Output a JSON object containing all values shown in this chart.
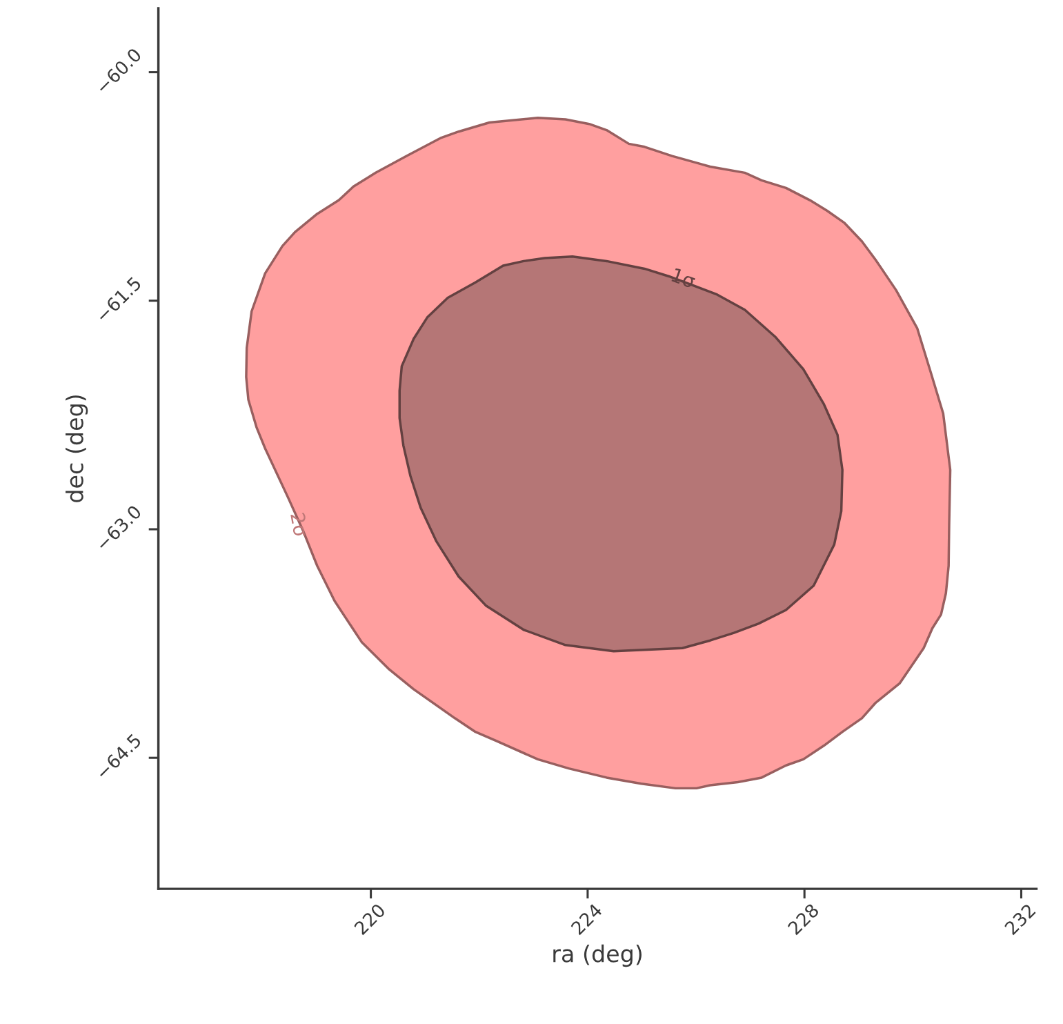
{
  "chart_data": {
    "type": "area",
    "xlabel": "ra (deg)",
    "ylabel": "dec (deg)",
    "xlim": [
      216.08,
      232.28
    ],
    "ylim": [
      -65.36,
      -59.58
    ],
    "xticks": [
      220,
      224,
      228,
      232
    ],
    "yticks": [
      {
        "value": -60.0,
        "label": "−60.0"
      },
      {
        "value": -61.5,
        "label": "−61.5"
      },
      {
        "value": -63.0,
        "label": "−63.0"
      },
      {
        "value": -64.5,
        "label": "−64.5"
      }
    ],
    "grid": false,
    "legend": false,
    "series": [
      {
        "color": "#ff9f9f",
        "x": [
          217.7,
          217.71,
          217.8,
          218.05,
          218.37,
          218.6,
          219.01,
          219.41,
          219.68,
          220.09,
          220.66,
          221.3,
          221.62,
          222.19,
          223.08,
          223.59,
          224.03,
          224.35,
          224.76,
          225.05,
          225.56,
          226.26,
          226.9,
          227.21,
          227.66,
          228.1,
          228.42,
          228.74,
          229.06,
          229.31,
          229.69,
          230.08,
          230.33,
          230.56,
          230.69,
          230.67,
          230.66,
          230.61,
          230.52,
          230.36,
          230.2,
          229.97,
          229.76,
          229.31,
          229.06,
          228.7,
          228.36,
          227.98,
          227.66,
          227.21,
          226.77,
          226.26,
          226.01,
          225.62,
          224.99,
          224.35,
          223.65,
          223.08,
          222.32,
          221.93,
          221.55,
          220.79,
          220.34,
          219.83,
          219.33,
          219.01,
          218.75,
          218.47,
          218.05,
          217.89,
          217.74
        ],
        "values": [
          -62.0,
          -61.81,
          -61.57,
          -61.32,
          -61.14,
          -61.05,
          -60.93,
          -60.84,
          -60.75,
          -60.66,
          -60.55,
          -60.43,
          -60.39,
          -60.33,
          -60.3,
          -60.31,
          -60.34,
          -60.38,
          -60.47,
          -60.49,
          -60.55,
          -60.62,
          -60.66,
          -60.71,
          -60.76,
          -60.84,
          -60.91,
          -60.99,
          -61.11,
          -61.23,
          -61.43,
          -61.68,
          -61.97,
          -62.24,
          -62.61,
          -62.97,
          -63.24,
          -63.42,
          -63.56,
          -63.65,
          -63.78,
          -63.9,
          -64.01,
          -64.14,
          -64.24,
          -64.33,
          -64.42,
          -64.51,
          -64.55,
          -64.63,
          -64.66,
          -64.68,
          -64.7,
          -64.7,
          -64.67,
          -64.63,
          -64.57,
          -64.51,
          -64.39,
          -64.33,
          -64.24,
          -64.05,
          -63.92,
          -63.74,
          -63.47,
          -63.24,
          -63.01,
          -62.79,
          -62.47,
          -62.33,
          -62.15
        ]
      },
      {
        "color": "#b57676",
        "x": [
          220.53,
          220.57,
          220.79,
          221.04,
          221.42,
          221.93,
          222.44,
          222.82,
          223.21,
          223.72,
          224.35,
          225.05,
          225.5,
          225.88,
          226.39,
          226.9,
          227.47,
          227.98,
          228.36,
          228.61,
          228.7,
          228.68,
          228.55,
          228.17,
          227.66,
          227.15,
          226.7,
          226.26,
          225.75,
          225.11,
          224.48,
          223.59,
          222.82,
          222.12,
          221.62,
          221.21,
          220.92,
          220.73,
          220.6,
          220.53
        ],
        "values": [
          -62.09,
          -61.93,
          -61.75,
          -61.61,
          -61.48,
          -61.38,
          -61.27,
          -61.24,
          -61.22,
          -61.21,
          -61.24,
          -61.29,
          -61.34,
          -61.39,
          -61.46,
          -61.56,
          -61.74,
          -61.95,
          -62.18,
          -62.38,
          -62.61,
          -62.88,
          -63.1,
          -63.37,
          -63.53,
          -63.62,
          -63.68,
          -63.73,
          -63.78,
          -63.79,
          -63.8,
          -63.76,
          -63.66,
          -63.5,
          -63.31,
          -63.08,
          -62.86,
          -62.65,
          -62.45,
          -62.27
        ]
      }
    ],
    "annotations": [
      {
        "text": "1σ",
        "x": 225.75,
        "y": -61.36
      },
      {
        "text": "2σ",
        "x": 218.65,
        "y": -62.97
      }
    ]
  }
}
